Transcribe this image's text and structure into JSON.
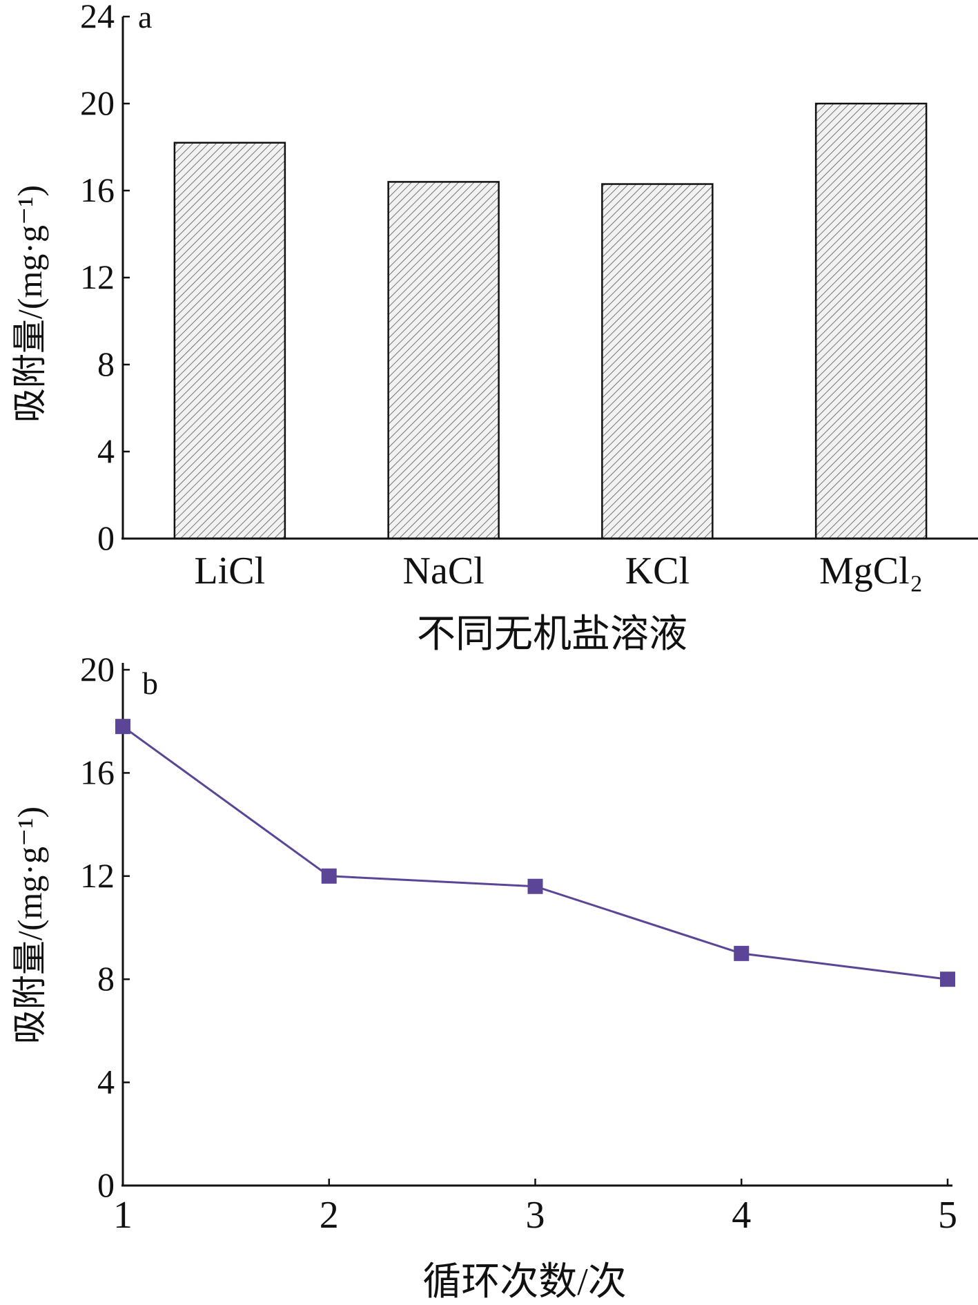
{
  "chart_data": [
    {
      "type": "bar",
      "panel_label": "a",
      "categories": [
        "LiCl",
        "NaCl",
        "KCl",
        "MgCl₂"
      ],
      "values": [
        18.2,
        16.4,
        16.3,
        20.0
      ],
      "xlabel": "不同无机盐溶液",
      "ylabel": "吸附量/(mg·g⁻¹)",
      "ylim": [
        0,
        24
      ],
      "yticks": [
        0,
        4,
        8,
        12,
        16,
        20,
        24
      ],
      "bar_pattern": "diagonal-hatch",
      "grid": false,
      "legend": "none"
    },
    {
      "type": "line",
      "panel_label": "b",
      "x": [
        1,
        2,
        3,
        4,
        5
      ],
      "xticks": [
        1,
        2,
        3,
        4,
        5
      ],
      "series": [
        {
          "values": [
            17.8,
            12.0,
            11.6,
            9.0,
            8.0
          ],
          "color": "#5b4596",
          "marker": "square"
        }
      ],
      "xlabel": "循环次数/次",
      "ylabel": "吸附量/(mg·g⁻¹)",
      "xlim": [
        1,
        5
      ],
      "ylim": [
        0,
        20
      ],
      "yticks": [
        0,
        4,
        8,
        12,
        16,
        20
      ],
      "grid": false,
      "legend": "none"
    }
  ]
}
